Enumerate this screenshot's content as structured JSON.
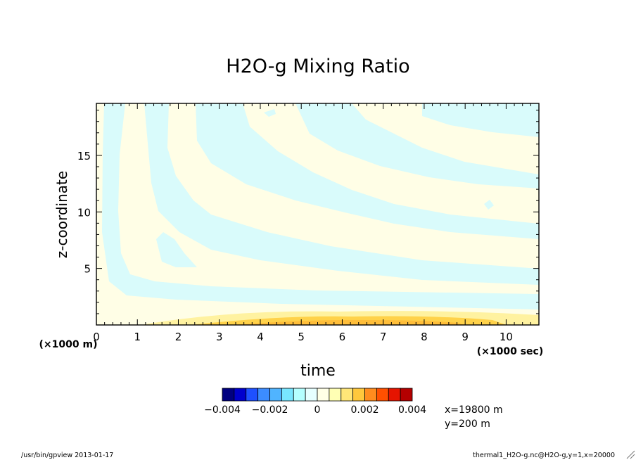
{
  "chart_data": {
    "type": "heatmap",
    "title": "H2O-g Mixing Ratio",
    "xlabel": "time",
    "ylabel": "z-coordinate",
    "x_unit": "(×1000 sec)",
    "y_unit": "(×1000 m)",
    "xlim": [
      0,
      10.8
    ],
    "ylim": [
      0,
      19.6
    ],
    "x_ticks": [
      "0",
      "1",
      "2",
      "3",
      "4",
      "5",
      "6",
      "7",
      "8",
      "9",
      "10"
    ],
    "y_ticks": [
      "5",
      "10",
      "15"
    ],
    "colorbar": {
      "colors": [
        "#000080",
        "#0000cd",
        "#1e50ff",
        "#3c8cff",
        "#50b4ff",
        "#78e6ff",
        "#b4ffff",
        "#e6ffff",
        "#ffffe6",
        "#ffffb4",
        "#ffe678",
        "#ffc83c",
        "#ff8c1e",
        "#ff5000",
        "#e61400",
        "#b40000"
      ],
      "labels": [
        "−0.004",
        "−0.002",
        "0",
        "0.002",
        "0.004"
      ],
      "range": [
        -0.004,
        0.004
      ]
    },
    "field_note_colors": {
      "positive_weak": "#fffee6",
      "negative_weak": "#d9fbfb",
      "positive_mid": "#fff2a0",
      "positive_strong": "#ffd24a"
    }
  },
  "annotations": {
    "location_x": "x=19800 m",
    "location_y": "y=200 m",
    "footer_left": "/usr/bin/gpview  2013-01-17",
    "footer_right": "thermal1_H2O-g.nc@H2O-g,y=1,x=20000"
  }
}
